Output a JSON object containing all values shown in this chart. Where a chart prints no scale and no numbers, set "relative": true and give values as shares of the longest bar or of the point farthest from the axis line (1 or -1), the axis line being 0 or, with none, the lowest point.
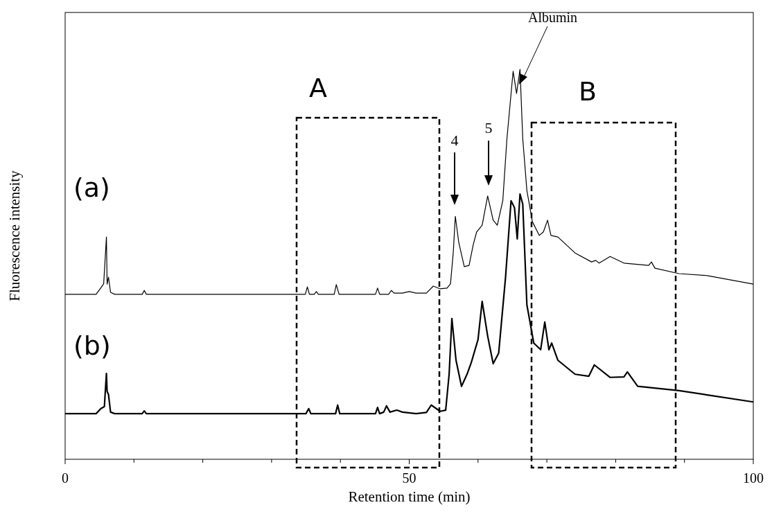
{
  "chart_data": {
    "type": "line",
    "relative": true,
    "xlabel": "Retention time (min)",
    "ylabel": "Fluorescence intensity",
    "series": [
      {
        "name": "(a)",
        "color": "#000000",
        "x": [
          0,
          4.5,
          5.2,
          5.6,
          6.0,
          6.1,
          6.3,
          6.6,
          7.2,
          11.2,
          11.5,
          11.8,
          34.9,
          35.2,
          35.5,
          36.2,
          36.5,
          36.8,
          39.1,
          39.4,
          39.8,
          45.1,
          45.4,
          45.7,
          47.0,
          47.4,
          47.8,
          49,
          50,
          51,
          52.5,
          53.5,
          54.5,
          55.5,
          56.0,
          56.4,
          56.7,
          57.2,
          58,
          58.7,
          59.3,
          59.8,
          60.6,
          61.4,
          62.2,
          62.8,
          63.6,
          64.2,
          65.1,
          65.6,
          66.1,
          66.5,
          67.1,
          67.9,
          68.9,
          69.5,
          70.1,
          70.6,
          71.6,
          74.1,
          76.5,
          77.1,
          77.6,
          79.2,
          81.2,
          84.8,
          85.2,
          85.7,
          89.2,
          93.3,
          100
        ],
        "values": [
          0.423,
          0.423,
          0.44,
          0.45,
          0.57,
          0.449,
          0.467,
          0.428,
          0.423,
          0.423,
          0.433,
          0.423,
          0.423,
          0.442,
          0.423,
          0.423,
          0.43,
          0.423,
          0.423,
          0.448,
          0.423,
          0.423,
          0.439,
          0.423,
          0.423,
          0.433,
          0.426,
          0.426,
          0.43,
          0.426,
          0.426,
          0.444,
          0.437,
          0.439,
          0.45,
          0.53,
          0.623,
          0.556,
          0.494,
          0.497,
          0.55,
          0.583,
          0.6,
          0.675,
          0.613,
          0.6,
          0.663,
          0.822,
          0.995,
          0.938,
          1.0,
          0.822,
          0.689,
          0.609,
          0.574,
          0.583,
          0.613,
          0.574,
          0.57,
          0.529,
          0.506,
          0.51,
          0.503,
          0.52,
          0.503,
          0.497,
          0.506,
          0.49,
          0.476,
          0.471,
          0.449
        ]
      },
      {
        "name": "(b)",
        "color": "#000000",
        "x": [
          0,
          4.5,
          5.2,
          5.7,
          6.0,
          6.1,
          6.3,
          6.6,
          7.2,
          11.2,
          11.5,
          11.8,
          35.0,
          35.4,
          35.7,
          39.3,
          39.6,
          39.9,
          45.1,
          45.4,
          45.7,
          46.3,
          46.7,
          47.2,
          48.2,
          49,
          51,
          52.5,
          53.2,
          54.5,
          55.3,
          55.8,
          56.2,
          56.8,
          57.6,
          58.4,
          59,
          60,
          60.6,
          61.4,
          62.2,
          63,
          64,
          64.8,
          65.3,
          65.7,
          66.1,
          66.5,
          67.1,
          68.1,
          69.1,
          69.7,
          70.3,
          70.7,
          71.6,
          74.1,
          76.1,
          76.9,
          79.2,
          81.2,
          81.7,
          83.2,
          89.2,
          93.3,
          100
        ],
        "values": [
          0.117,
          0.117,
          0.13,
          0.135,
          0.22,
          0.174,
          0.166,
          0.121,
          0.117,
          0.117,
          0.124,
          0.117,
          0.117,
          0.13,
          0.117,
          0.117,
          0.139,
          0.117,
          0.117,
          0.133,
          0.117,
          0.121,
          0.137,
          0.121,
          0.126,
          0.121,
          0.117,
          0.12,
          0.139,
          0.123,
          0.126,
          0.218,
          0.361,
          0.254,
          0.187,
          0.218,
          0.247,
          0.307,
          0.405,
          0.316,
          0.245,
          0.272,
          0.467,
          0.663,
          0.645,
          0.565,
          0.68,
          0.654,
          0.396,
          0.298,
          0.281,
          0.352,
          0.281,
          0.298,
          0.254,
          0.218,
          0.213,
          0.242,
          0.21,
          0.211,
          0.224,
          0.187,
          0.176,
          0.165,
          0.147
        ]
      }
    ],
    "xlim": [
      0,
      100
    ],
    "xticks": [
      0,
      {
        "value": 10,
        "label": null
      },
      {
        "value": 20,
        "label": null
      },
      {
        "value": 30,
        "label": null
      },
      {
        "value": 40,
        "label": null
      },
      50,
      {
        "value": 60,
        "label": null
      },
      {
        "value": 70,
        "label": null
      },
      {
        "value": 80,
        "label": null
      },
      {
        "value": 90,
        "label": null
      },
      100
    ],
    "annotations": [
      "A",
      "B",
      "4",
      "5",
      "Albumin"
    ]
  }
}
